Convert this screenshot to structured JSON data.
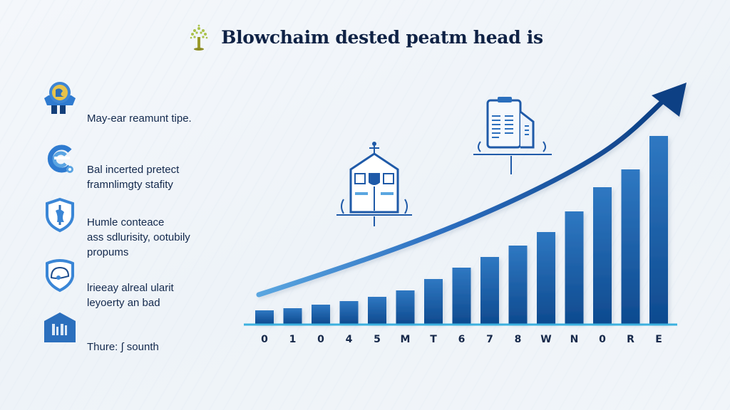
{
  "title": "Blowchaim dested peatm head is",
  "features": [
    {
      "icon": "award-badge-icon",
      "lines": [
        "May-ear reamunt tipe."
      ]
    },
    {
      "icon": "circular-arrows-icon",
      "lines": [
        "Bal incerted pretect",
        "framnlimgty stafity"
      ]
    },
    {
      "icon": "shield-icon",
      "lines": [
        "Humle conteace",
        "ass sdlurisity, ootubily",
        "propums"
      ]
    },
    {
      "icon": "shield-helmet-icon",
      "lines": [
        "lrieeay alreal ularit",
        "leyoerty an bad"
      ]
    },
    {
      "icon": "house-chart-icon",
      "lines": [
        "Thure: ∫ sounth"
      ]
    }
  ],
  "illustrations": [
    {
      "icon": "building-icon"
    },
    {
      "icon": "document-clipboard-icon"
    }
  ],
  "colors": {
    "bar_top": "#2f78c2",
    "bar_bottom": "#0e4a8f",
    "baseline": "#3bb0de",
    "arrow_start": "#5aa6e0",
    "arrow_end": "#0c3f84",
    "title": "#0f2245"
  },
  "chart_data": {
    "type": "bar",
    "title": "Blowchaim dested peatm head is",
    "categories": [
      "0",
      "1",
      "0",
      "4",
      "5",
      "M",
      "T",
      "6",
      "7",
      "8",
      "W",
      "N",
      "0",
      "R",
      "E"
    ],
    "values": [
      19,
      22,
      27,
      32,
      38,
      47,
      63,
      79,
      94,
      110,
      129,
      158,
      192,
      217,
      264
    ],
    "xlabel": "",
    "ylabel": "",
    "ylim": [
      0,
      280
    ],
    "grid": false,
    "legend": "none",
    "annotations": [
      "upward trend arrow over bars"
    ]
  }
}
